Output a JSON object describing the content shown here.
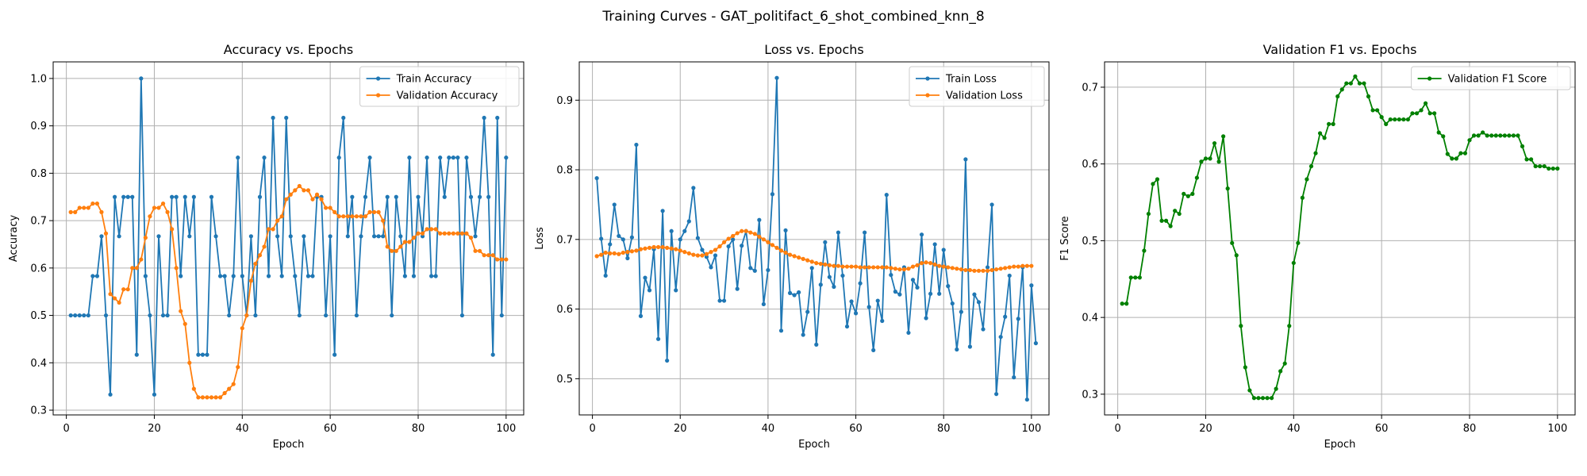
{
  "suptitle": "Training Curves - GAT_politifact_6_shot_combined_knn_8",
  "chart_data": [
    {
      "type": "line",
      "title": "Accuracy vs. Epochs",
      "xlabel": "Epoch",
      "ylabel": "Accuracy",
      "xlim": [
        -3,
        104
      ],
      "ylim": [
        0.29,
        1.035
      ],
      "xticks": [
        0,
        20,
        40,
        60,
        80,
        100
      ],
      "yticks": [
        0.3,
        0.4,
        0.5,
        0.6,
        0.7,
        0.8,
        0.9,
        1.0
      ],
      "ytick_labels": [
        "0.3",
        "0.4",
        "0.5",
        "0.6",
        "0.7",
        "0.8",
        "0.9",
        "1.0"
      ],
      "grid": true,
      "legend": "upper right",
      "x_start": 1,
      "series": [
        {
          "name": "Train Accuracy",
          "color": "#1f77b4",
          "values": [
            0.5,
            0.5,
            0.5,
            0.5,
            0.5,
            0.583,
            0.583,
            0.667,
            0.5,
            0.333,
            0.75,
            0.667,
            0.75,
            0.75,
            0.75,
            0.417,
            1.0,
            0.583,
            0.5,
            0.333,
            0.667,
            0.5,
            0.5,
            0.75,
            0.75,
            0.583,
            0.75,
            0.667,
            0.75,
            0.417,
            0.417,
            0.417,
            0.75,
            0.667,
            0.583,
            0.583,
            0.5,
            0.583,
            0.833,
            0.583,
            0.5,
            0.667,
            0.5,
            0.75,
            0.833,
            0.583,
            0.917,
            0.667,
            0.583,
            0.917,
            0.667,
            0.583,
            0.5,
            0.667,
            0.583,
            0.583,
            0.75,
            0.75,
            0.5,
            0.667,
            0.417,
            0.833,
            0.917,
            0.667,
            0.75,
            0.5,
            0.667,
            0.75,
            0.833,
            0.667,
            0.667,
            0.667,
            0.75,
            0.5,
            0.75,
            0.667,
            0.583,
            0.833,
            0.583,
            0.75,
            0.667,
            0.833,
            0.583,
            0.583,
            0.833,
            0.75,
            0.833,
            0.833,
            0.833,
            0.5,
            0.833,
            0.75,
            0.667,
            0.75,
            0.917,
            0.75,
            0.417,
            0.917,
            0.5,
            0.833
          ]
        },
        {
          "name": "Validation Accuracy",
          "color": "#ff7f0e",
          "values": [
            0.718,
            0.718,
            0.727,
            0.727,
            0.727,
            0.736,
            0.736,
            0.718,
            0.673,
            0.545,
            0.536,
            0.527,
            0.555,
            0.555,
            0.6,
            0.6,
            0.618,
            0.664,
            0.709,
            0.727,
            0.727,
            0.736,
            0.718,
            0.682,
            0.6,
            0.509,
            0.482,
            0.4,
            0.345,
            0.327,
            0.327,
            0.327,
            0.327,
            0.327,
            0.327,
            0.336,
            0.345,
            0.355,
            0.391,
            0.473,
            0.5,
            0.573,
            0.609,
            0.627,
            0.645,
            0.682,
            0.682,
            0.7,
            0.709,
            0.745,
            0.755,
            0.764,
            0.773,
            0.764,
            0.764,
            0.745,
            0.755,
            0.745,
            0.727,
            0.727,
            0.718,
            0.709,
            0.709,
            0.709,
            0.709,
            0.709,
            0.709,
            0.709,
            0.718,
            0.718,
            0.718,
            0.7,
            0.645,
            0.636,
            0.636,
            0.645,
            0.655,
            0.655,
            0.664,
            0.673,
            0.673,
            0.682,
            0.682,
            0.682,
            0.673,
            0.673,
            0.673,
            0.673,
            0.673,
            0.673,
            0.673,
            0.664,
            0.636,
            0.636,
            0.627,
            0.627,
            0.627,
            0.618,
            0.618,
            0.618
          ]
        }
      ]
    },
    {
      "type": "line",
      "title": "Loss vs. Epochs",
      "xlabel": "Epoch",
      "ylabel": "Loss",
      "xlim": [
        -3,
        104
      ],
      "ylim": [
        0.448,
        0.955
      ],
      "xticks": [
        0,
        20,
        40,
        60,
        80,
        100
      ],
      "yticks": [
        0.5,
        0.6,
        0.7,
        0.8,
        0.9
      ],
      "ytick_labels": [
        "0.5",
        "0.6",
        "0.7",
        "0.8",
        "0.9"
      ],
      "grid": true,
      "legend": "upper right",
      "x_start": 1,
      "series": [
        {
          "name": "Train Loss",
          "color": "#1f77b4",
          "values": [
            0.788,
            0.701,
            0.648,
            0.693,
            0.75,
            0.705,
            0.7,
            0.673,
            0.703,
            0.836,
            0.59,
            0.645,
            0.627,
            0.686,
            0.557,
            0.741,
            0.526,
            0.712,
            0.627,
            0.7,
            0.712,
            0.726,
            0.774,
            0.702,
            0.685,
            0.675,
            0.66,
            0.677,
            0.612,
            0.612,
            0.69,
            0.7,
            0.629,
            0.691,
            0.712,
            0.659,
            0.655,
            0.728,
            0.607,
            0.656,
            0.765,
            0.932,
            0.569,
            0.713,
            0.623,
            0.62,
            0.624,
            0.563,
            0.596,
            0.659,
            0.549,
            0.635,
            0.696,
            0.646,
            0.632,
            0.71,
            0.648,
            0.575,
            0.611,
            0.594,
            0.637,
            0.71,
            0.603,
            0.541,
            0.612,
            0.583,
            0.764,
            0.649,
            0.625,
            0.621,
            0.66,
            0.566,
            0.642,
            0.631,
            0.707,
            0.587,
            0.622,
            0.693,
            0.622,
            0.685,
            0.633,
            0.608,
            0.542,
            0.596,
            0.815,
            0.546,
            0.621,
            0.61,
            0.571,
            0.66,
            0.75,
            0.478,
            0.56,
            0.589,
            0.648,
            0.502,
            0.586,
            0.66,
            0.47,
            0.634,
            0.551
          ]
        },
        {
          "name": "Validation Loss",
          "color": "#ff7f0e",
          "values": [
            0.676,
            0.678,
            0.681,
            0.68,
            0.68,
            0.679,
            0.681,
            0.682,
            0.683,
            0.684,
            0.686,
            0.687,
            0.688,
            0.689,
            0.689,
            0.689,
            0.688,
            0.687,
            0.686,
            0.684,
            0.682,
            0.68,
            0.678,
            0.677,
            0.677,
            0.679,
            0.682,
            0.685,
            0.69,
            0.696,
            0.701,
            0.705,
            0.709,
            0.712,
            0.712,
            0.71,
            0.708,
            0.704,
            0.7,
            0.696,
            0.692,
            0.688,
            0.684,
            0.681,
            0.678,
            0.676,
            0.674,
            0.672,
            0.67,
            0.668,
            0.666,
            0.665,
            0.664,
            0.663,
            0.662,
            0.662,
            0.661,
            0.661,
            0.661,
            0.661,
            0.66,
            0.66,
            0.66,
            0.66,
            0.66,
            0.66,
            0.66,
            0.659,
            0.658,
            0.657,
            0.657,
            0.658,
            0.661,
            0.663,
            0.666,
            0.667,
            0.666,
            0.664,
            0.662,
            0.661,
            0.66,
            0.659,
            0.658,
            0.657,
            0.656,
            0.656,
            0.655,
            0.655,
            0.655,
            0.655,
            0.656,
            0.657,
            0.658,
            0.659,
            0.66,
            0.661,
            0.661,
            0.662,
            0.662,
            0.662
          ]
        }
      ]
    },
    {
      "type": "line",
      "title": "Validation F1 vs. Epochs",
      "xlabel": "Epoch",
      "ylabel": "F1 Score",
      "xlim": [
        -3,
        104
      ],
      "ylim": [
        0.273,
        0.733
      ],
      "xticks": [
        0,
        20,
        40,
        60,
        80,
        100
      ],
      "yticks": [
        0.3,
        0.4,
        0.5,
        0.6,
        0.7
      ],
      "ytick_labels": [
        "0.3",
        "0.4",
        "0.5",
        "0.6",
        "0.7"
      ],
      "grid": true,
      "legend": "upper right",
      "x_start": 1,
      "series": [
        {
          "name": "Validation F1 Score",
          "color": "#008000",
          "values": [
            0.418,
            0.418,
            0.452,
            0.452,
            0.452,
            0.487,
            0.535,
            0.574,
            0.58,
            0.526,
            0.526,
            0.519,
            0.539,
            0.535,
            0.561,
            0.558,
            0.561,
            0.582,
            0.603,
            0.607,
            0.607,
            0.627,
            0.603,
            0.636,
            0.568,
            0.497,
            0.481,
            0.389,
            0.335,
            0.305,
            0.295,
            0.295,
            0.295,
            0.295,
            0.295,
            0.307,
            0.33,
            0.34,
            0.389,
            0.471,
            0.497,
            0.556,
            0.58,
            0.597,
            0.614,
            0.64,
            0.634,
            0.652,
            0.652,
            0.688,
            0.697,
            0.705,
            0.705,
            0.714,
            0.705,
            0.705,
            0.688,
            0.67,
            0.67,
            0.661,
            0.652,
            0.658,
            0.658,
            0.658,
            0.658,
            0.658,
            0.666,
            0.666,
            0.67,
            0.679,
            0.666,
            0.666,
            0.641,
            0.636,
            0.613,
            0.607,
            0.607,
            0.614,
            0.614,
            0.631,
            0.637,
            0.637,
            0.641,
            0.637,
            0.637,
            0.637,
            0.637,
            0.637,
            0.637,
            0.637,
            0.637,
            0.623,
            0.606,
            0.606,
            0.597,
            0.597,
            0.597,
            0.594,
            0.594,
            0.594
          ]
        }
      ]
    }
  ]
}
